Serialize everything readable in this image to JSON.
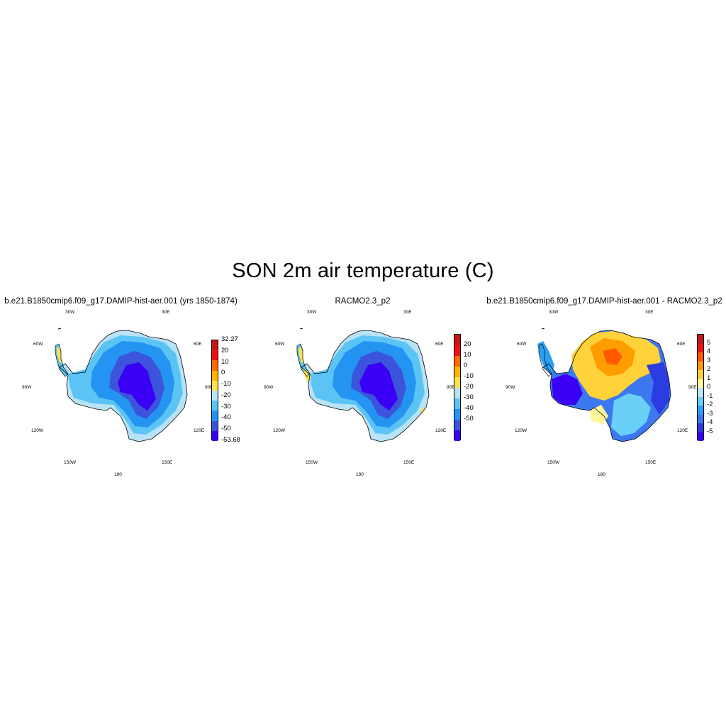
{
  "title": "SON 2m air temperature (C)",
  "graticule": [
    "30W",
    "30E",
    "60W",
    "60E",
    "90W",
    "90E",
    "120W",
    "120E",
    "150W",
    "150E",
    "180"
  ],
  "panels": [
    {
      "title": "b.e21.B1850cmip6.f09_g17.DAMIP-hist-aer.001 (yrs 1850-1874)",
      "colorbar": {
        "colors": [
          "#3a00f5",
          "#3c53dc",
          "#2394f2",
          "#5bc4f5",
          "#b8e3f6",
          "#ffe14d",
          "#ffb300",
          "#ff6a00",
          "#f01010",
          "#c81414"
        ],
        "labels": [
          "32.27",
          "20",
          "10",
          "0",
          "-10",
          "-20",
          "-30",
          "-40",
          "-50",
          "-53.68"
        ]
      }
    },
    {
      "title": "RACMO2.3_p2",
      "colorbar": {
        "colors": [
          "#3a00f5",
          "#3c53dc",
          "#2394f2",
          "#5bc4f5",
          "#b8e3f6",
          "#ffe14d",
          "#ffb300",
          "#ff6a00",
          "#f01010",
          "#c81414"
        ],
        "labels": [
          "20",
          "10",
          "0",
          "-10",
          "-20",
          "-30",
          "-40",
          "-50"
        ]
      }
    },
    {
      "title": "b.e21.B1850cmip6.f09_g17.DAMIP-hist-aer.001 - RACMO2.3_p2",
      "colorbar": {
        "colors": [
          "#3a00f5",
          "#2b3ce0",
          "#3c78f0",
          "#2aa0f5",
          "#6ad0f7",
          "#bde6f6",
          "#fff59a",
          "#ffd23a",
          "#ff9c00",
          "#ff5a00",
          "#f01010",
          "#c81414"
        ],
        "labels": [
          "5",
          "4",
          "3",
          "2",
          "1",
          "0",
          "-1",
          "-2",
          "-3",
          "-4",
          "-5"
        ]
      }
    }
  ]
}
